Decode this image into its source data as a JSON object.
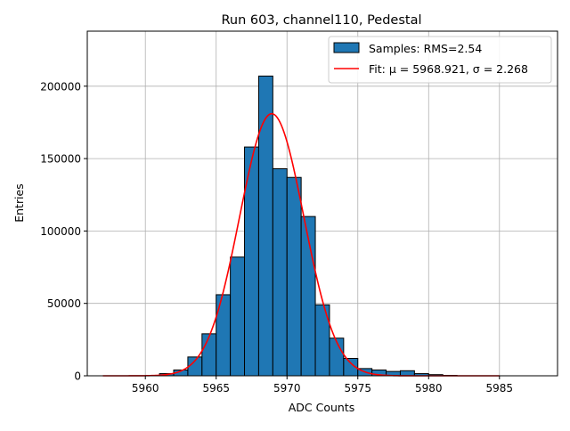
{
  "chart_data": {
    "type": "bar",
    "title": "Run 603, channel110, Pedestal",
    "xlabel": "ADC Counts",
    "ylabel": "Entries",
    "xlim": [
      5955.9,
      5989.1
    ],
    "ylim": [
      0,
      238000
    ],
    "xticks": [
      5960,
      5965,
      5970,
      5975,
      5980,
      5985
    ],
    "yticks": [
      0,
      50000,
      100000,
      150000,
      200000
    ],
    "grid": true,
    "legend_position": "top-right",
    "histogram": {
      "name": "Samples: RMS=2.54",
      "color": "#1f77b4",
      "edgecolor": "#000000",
      "bin_width": 1,
      "bins": [
        {
          "x0": 5961,
          "count": 1500
        },
        {
          "x0": 5962,
          "count": 4000
        },
        {
          "x0": 5963,
          "count": 13000
        },
        {
          "x0": 5964,
          "count": 29000
        },
        {
          "x0": 5965,
          "count": 56000
        },
        {
          "x0": 5966,
          "count": 82000
        },
        {
          "x0": 5967,
          "count": 158000
        },
        {
          "x0": 5968,
          "count": 207000
        },
        {
          "x0": 5969,
          "count": 143000
        },
        {
          "x0": 5970,
          "count": 137000
        },
        {
          "x0": 5971,
          "count": 110000
        },
        {
          "x0": 5972,
          "count": 49000
        },
        {
          "x0": 5973,
          "count": 26000
        },
        {
          "x0": 5974,
          "count": 12000
        },
        {
          "x0": 5975,
          "count": 5000
        },
        {
          "x0": 5976,
          "count": 4000
        },
        {
          "x0": 5977,
          "count": 3000
        },
        {
          "x0": 5978,
          "count": 3500
        },
        {
          "x0": 5979,
          "count": 1500
        },
        {
          "x0": 5980,
          "count": 800
        },
        {
          "x0": 5981,
          "count": 300
        }
      ]
    },
    "fit": {
      "name": "Fit: μ = 5968.921, σ = 2.268",
      "color": "#ff0000",
      "mu": 5968.921,
      "sigma": 2.268,
      "amplitude": 181000,
      "x_range": [
        5957,
        5985
      ]
    }
  }
}
